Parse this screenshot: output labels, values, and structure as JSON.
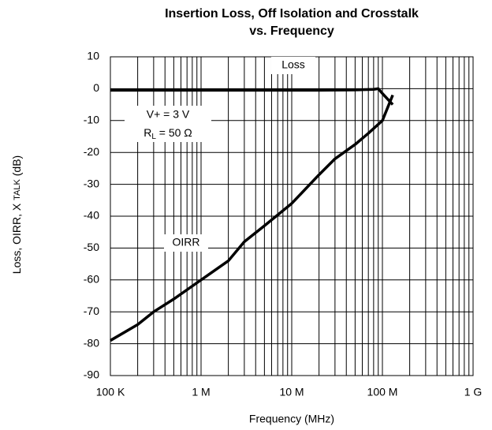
{
  "chart_data": {
    "type": "line",
    "title_lines": [
      "Insertion Loss, Off Isolation and Crosstalk",
      "vs. Frequency"
    ],
    "xlabel": "Frequency (MHz)",
    "ylabel_parts": [
      "Loss,  OIRR, X",
      "TALK",
      "(dB)"
    ],
    "xlog": true,
    "xlim": [
      0.1,
      1000
    ],
    "ylim": [
      -90,
      10
    ],
    "xticks": [
      {
        "value": 0.1,
        "label": "100 K"
      },
      {
        "value": 1,
        "label": "1 M"
      },
      {
        "value": 10,
        "label": "10 M"
      },
      {
        "value": 100,
        "label": "100 M"
      },
      {
        "value": 1000,
        "label": "1 G"
      }
    ],
    "xminorticks": [
      0.2,
      0.3,
      0.4,
      0.5,
      0.6,
      0.7,
      0.8,
      0.9,
      2,
      3,
      4,
      5,
      6,
      7,
      8,
      9,
      20,
      30,
      40,
      50,
      60,
      70,
      80,
      90,
      200,
      300,
      400,
      500,
      600,
      700,
      800,
      900
    ],
    "yticks": [
      10,
      0,
      -10,
      -20,
      -30,
      -40,
      -50,
      -60,
      -70,
      -80,
      -90
    ],
    "grid": true,
    "annotations": [
      {
        "text": "V+ = 3 V"
      },
      {
        "text": "R",
        "sub": "L",
        "rest": " = 50 Ω"
      }
    ],
    "series": [
      {
        "name": "Loss",
        "color": "#000000",
        "x": [
          0.1,
          0.2,
          0.5,
          1,
          2,
          5,
          10,
          20,
          50,
          80,
          90,
          100,
          130
        ],
        "values": [
          -0.5,
          -0.5,
          -0.5,
          -0.5,
          -0.5,
          -0.5,
          -0.5,
          -0.5,
          -0.4,
          -0.2,
          0,
          -1.5,
          -5
        ]
      },
      {
        "name": "OIRR",
        "color": "#000000",
        "x": [
          0.1,
          0.2,
          0.3,
          0.5,
          1,
          2,
          3,
          5,
          10,
          20,
          30,
          50,
          70,
          100,
          130
        ],
        "values": [
          -79,
          -74,
          -70,
          -66,
          -60,
          -54,
          -48,
          -43,
          -36,
          -27,
          -22,
          -17.5,
          -14,
          -10,
          -2
        ]
      }
    ]
  }
}
